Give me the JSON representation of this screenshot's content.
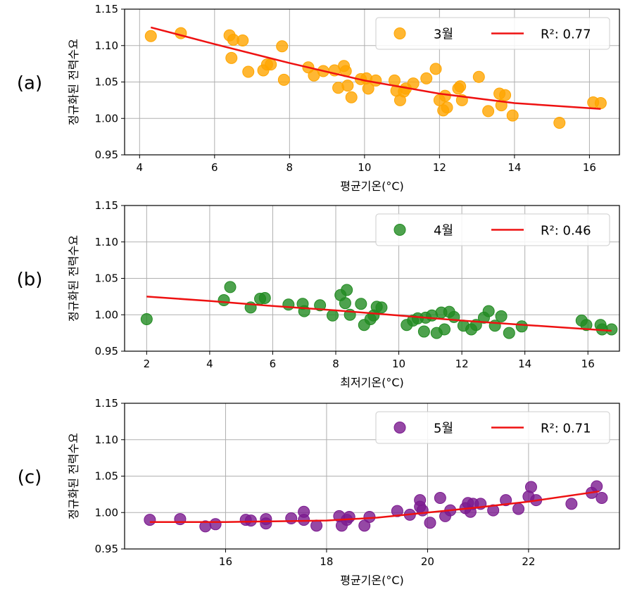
{
  "ylabel": "정규화된 전력수요",
  "chart_data": [
    {
      "type": "scatter",
      "panel_label": "(a)",
      "xlabel": "평균기온(°C)",
      "ylabel": "정규화된 전력수요",
      "xlim": [
        3.6,
        16.8
      ],
      "ylim": [
        0.95,
        1.15
      ],
      "xticks": [
        4,
        6,
        8,
        10,
        12,
        14,
        16
      ],
      "yticks": [
        "0.95",
        "1.00",
        "1.05",
        "1.10",
        "1.15"
      ],
      "grid": true,
      "legend_position": "top-right",
      "point_color": "#FFA500",
      "line_color": "#EE1111",
      "series_name": "3월",
      "fit_label": "R²: 0.77",
      "points": [
        [
          4.3,
          1.113
        ],
        [
          5.1,
          1.117
        ],
        [
          6.4,
          1.114
        ],
        [
          6.5,
          1.108
        ],
        [
          6.75,
          1.107
        ],
        [
          6.45,
          1.083
        ],
        [
          6.9,
          1.064
        ],
        [
          7.3,
          1.066
        ],
        [
          7.4,
          1.074
        ],
        [
          7.5,
          1.074
        ],
        [
          7.8,
          1.099
        ],
        [
          7.85,
          1.053
        ],
        [
          8.5,
          1.07
        ],
        [
          8.65,
          1.059
        ],
        [
          8.9,
          1.065
        ],
        [
          9.2,
          1.066
        ],
        [
          9.3,
          1.042
        ],
        [
          9.45,
          1.072
        ],
        [
          9.5,
          1.065
        ],
        [
          9.55,
          1.045
        ],
        [
          9.65,
          1.029
        ],
        [
          9.9,
          1.054
        ],
        [
          10.05,
          1.055
        ],
        [
          10.1,
          1.041
        ],
        [
          10.3,
          1.052
        ],
        [
          10.8,
          1.052
        ],
        [
          10.85,
          1.038
        ],
        [
          10.95,
          1.025
        ],
        [
          11.05,
          1.037
        ],
        [
          11.1,
          1.041
        ],
        [
          11.3,
          1.048
        ],
        [
          11.65,
          1.055
        ],
        [
          11.9,
          1.068
        ],
        [
          12.0,
          1.025
        ],
        [
          12.1,
          1.011
        ],
        [
          12.15,
          1.031
        ],
        [
          12.2,
          1.015
        ],
        [
          12.5,
          1.041
        ],
        [
          12.55,
          1.044
        ],
        [
          12.6,
          1.025
        ],
        [
          13.05,
          1.057
        ],
        [
          13.3,
          1.01
        ],
        [
          13.6,
          1.034
        ],
        [
          13.65,
          1.018
        ],
        [
          13.75,
          1.032
        ],
        [
          13.95,
          1.004
        ],
        [
          15.2,
          0.994
        ],
        [
          16.1,
          1.022
        ],
        [
          16.3,
          1.021
        ]
      ],
      "fit": [
        [
          4.3,
          1.125
        ],
        [
          6,
          1.102
        ],
        [
          8,
          1.076
        ],
        [
          10,
          1.052
        ],
        [
          12,
          1.034
        ],
        [
          14,
          1.021
        ],
        [
          16.3,
          1.013
        ]
      ]
    },
    {
      "type": "scatter",
      "panel_label": "(b)",
      "xlabel": "최저기온(°C)",
      "ylabel": "정규화된 전력수요",
      "xlim": [
        1.3,
        17.0
      ],
      "ylim": [
        0.95,
        1.15
      ],
      "xticks": [
        2,
        4,
        6,
        8,
        10,
        12,
        14,
        16
      ],
      "yticks": [
        "0.95",
        "1.00",
        "1.05",
        "1.10",
        "1.15"
      ],
      "grid": true,
      "legend_position": "top-right",
      "point_color": "#228B22",
      "line_color": "#EE1111",
      "series_name": "4월",
      "fit_label": "R²: 0.46",
      "points": [
        [
          2.0,
          0.994
        ],
        [
          4.45,
          1.02
        ],
        [
          4.65,
          1.038
        ],
        [
          5.3,
          1.01
        ],
        [
          5.6,
          1.022
        ],
        [
          5.75,
          1.023
        ],
        [
          6.5,
          1.014
        ],
        [
          6.95,
          1.015
        ],
        [
          7.0,
          1.005
        ],
        [
          7.5,
          1.013
        ],
        [
          7.9,
          0.999
        ],
        [
          8.15,
          1.027
        ],
        [
          8.3,
          1.016
        ],
        [
          8.35,
          1.034
        ],
        [
          8.45,
          1.0
        ],
        [
          8.8,
          1.015
        ],
        [
          8.9,
          0.986
        ],
        [
          9.1,
          0.994
        ],
        [
          9.2,
          0.999
        ],
        [
          9.3,
          1.011
        ],
        [
          9.45,
          1.01
        ],
        [
          10.25,
          0.986
        ],
        [
          10.45,
          0.992
        ],
        [
          10.6,
          0.995
        ],
        [
          10.8,
          0.977
        ],
        [
          10.85,
          0.996
        ],
        [
          11.05,
          0.999
        ],
        [
          11.2,
          0.975
        ],
        [
          11.35,
          1.003
        ],
        [
          11.45,
          0.98
        ],
        [
          11.6,
          1.004
        ],
        [
          11.75,
          0.997
        ],
        [
          12.05,
          0.985
        ],
        [
          12.3,
          0.98
        ],
        [
          12.45,
          0.986
        ],
        [
          12.7,
          0.996
        ],
        [
          12.85,
          1.005
        ],
        [
          13.05,
          0.985
        ],
        [
          13.25,
          0.998
        ],
        [
          13.5,
          0.975
        ],
        [
          13.9,
          0.984
        ],
        [
          15.8,
          0.992
        ],
        [
          15.95,
          0.986
        ],
        [
          16.4,
          0.986
        ],
        [
          16.45,
          0.98
        ],
        [
          16.75,
          0.98
        ]
      ],
      "fit": [
        [
          2.0,
          1.025
        ],
        [
          4,
          1.019
        ],
        [
          6,
          1.012
        ],
        [
          8,
          1.006
        ],
        [
          10,
          0.999
        ],
        [
          12,
          0.992
        ],
        [
          14,
          0.986
        ],
        [
          16.75,
          0.978
        ]
      ]
    },
    {
      "type": "scatter",
      "panel_label": "(c)",
      "xlabel": "평균기온(°C)",
      "ylabel": "정규화된 전력수요",
      "xlim": [
        14.0,
        23.8
      ],
      "ylim": [
        0.95,
        1.15
      ],
      "xticks": [
        16,
        18,
        20,
        22
      ],
      "yticks": [
        "0.95",
        "1.00",
        "1.05",
        "1.10",
        "1.15"
      ],
      "grid": true,
      "legend_position": "top-right",
      "point_color": "#7B1A8F",
      "line_color": "#EE1111",
      "series_name": "5월",
      "fit_label": "R²: 0.71",
      "points": [
        [
          14.5,
          0.99
        ],
        [
          15.1,
          0.991
        ],
        [
          15.6,
          0.981
        ],
        [
          15.8,
          0.984
        ],
        [
          16.4,
          0.99
        ],
        [
          16.5,
          0.989
        ],
        [
          16.8,
          0.985
        ],
        [
          16.8,
          0.991
        ],
        [
          17.3,
          0.992
        ],
        [
          17.55,
          0.99
        ],
        [
          17.55,
          1.001
        ],
        [
          17.8,
          0.982
        ],
        [
          18.25,
          0.995
        ],
        [
          18.3,
          0.982
        ],
        [
          18.4,
          0.99
        ],
        [
          18.45,
          0.994
        ],
        [
          18.75,
          0.982
        ],
        [
          18.85,
          0.994
        ],
        [
          19.4,
          1.002
        ],
        [
          19.65,
          0.997
        ],
        [
          19.85,
          1.008
        ],
        [
          19.85,
          1.017
        ],
        [
          19.9,
          1.003
        ],
        [
          20.05,
          0.986
        ],
        [
          20.25,
          1.02
        ],
        [
          20.35,
          0.995
        ],
        [
          20.45,
          1.003
        ],
        [
          20.75,
          1.006
        ],
        [
          20.8,
          1.013
        ],
        [
          20.85,
          1.001
        ],
        [
          20.9,
          1.012
        ],
        [
          21.05,
          1.012
        ],
        [
          21.3,
          1.003
        ],
        [
          21.55,
          1.017
        ],
        [
          21.8,
          1.005
        ],
        [
          22.0,
          1.022
        ],
        [
          22.05,
          1.035
        ],
        [
          22.15,
          1.017
        ],
        [
          22.85,
          1.012
        ],
        [
          23.25,
          1.027
        ],
        [
          23.35,
          1.036
        ],
        [
          23.45,
          1.02
        ]
      ],
      "fit": [
        [
          14.5,
          0.987
        ],
        [
          16,
          0.987
        ],
        [
          18,
          0.989
        ],
        [
          19,
          0.993
        ],
        [
          20,
          1.0
        ],
        [
          21,
          1.007
        ],
        [
          22,
          1.015
        ],
        [
          23.4,
          1.029
        ]
      ]
    }
  ]
}
